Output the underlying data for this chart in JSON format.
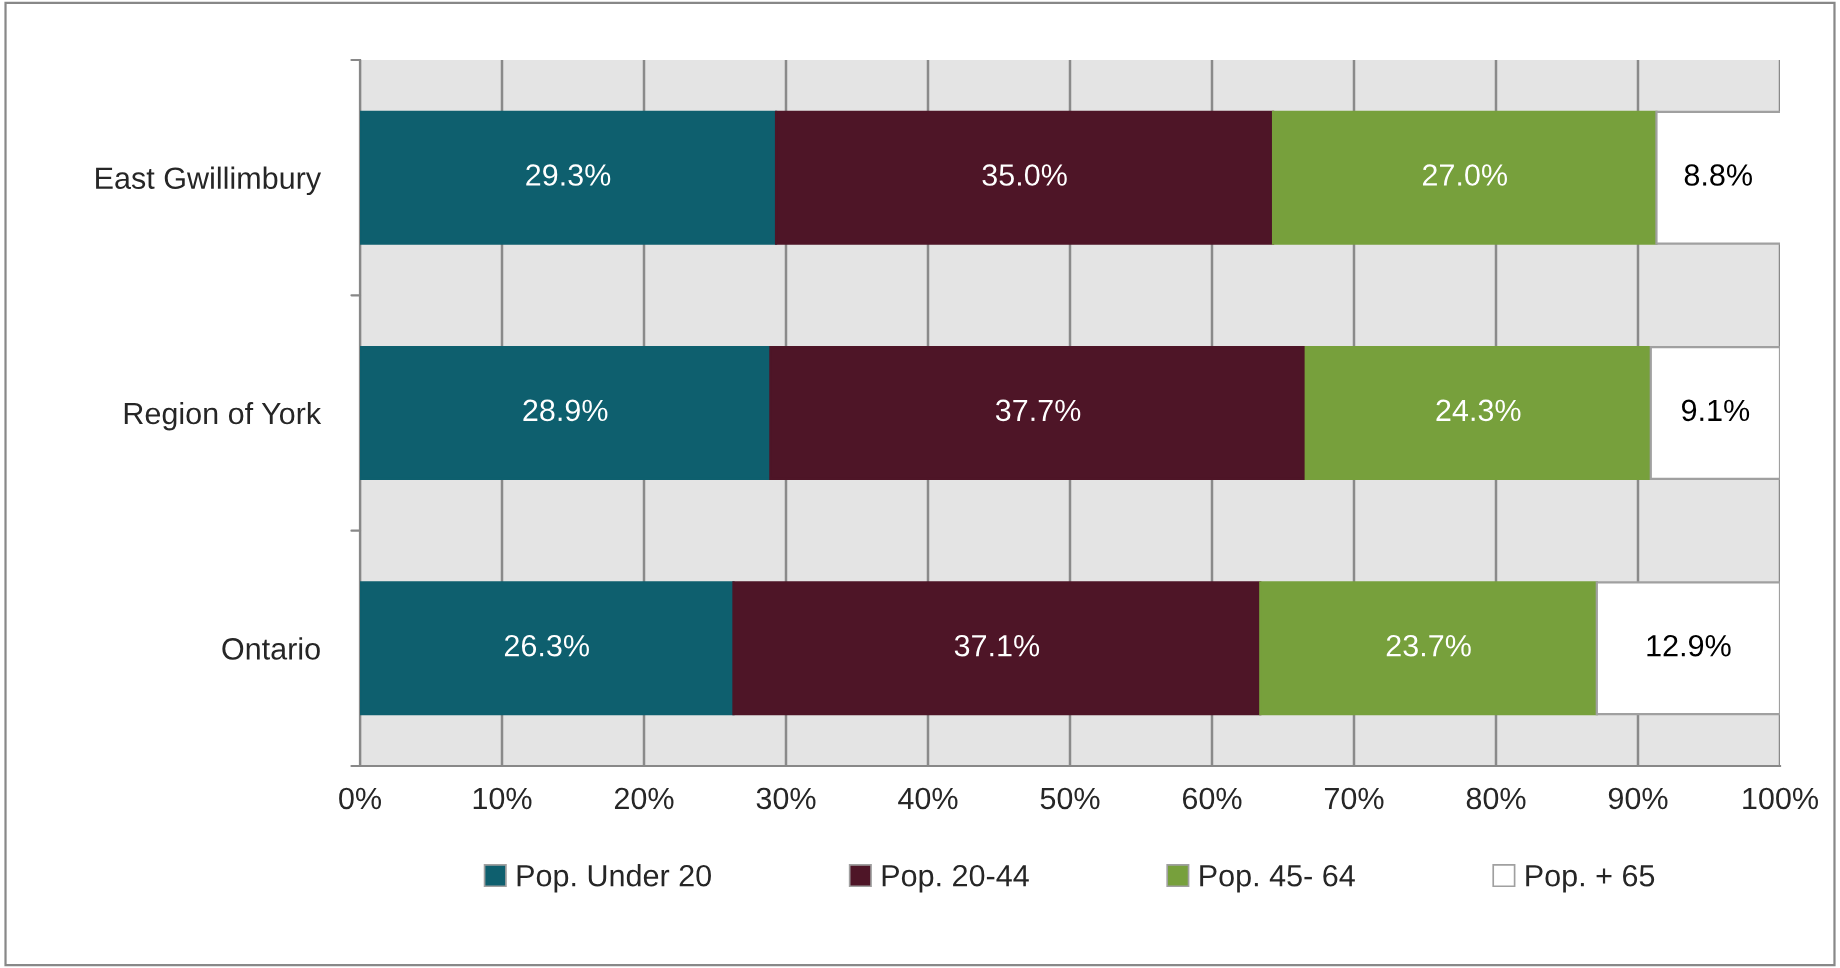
{
  "chart_data": {
    "type": "bar",
    "orientation": "horizontal",
    "stacked": true,
    "categories": [
      "East Gwillimbury",
      "Region of York",
      "Ontario"
    ],
    "series": [
      {
        "name": "Pop. Under 20",
        "color": "#0e5f6e",
        "values": [
          29.3,
          28.9,
          26.3
        ],
        "value_labels": [
          "29.3%",
          "28.9%",
          "26.3%"
        ]
      },
      {
        "name": "Pop. 20-44",
        "color": "#4e1527",
        "values": [
          35.0,
          37.7,
          37.1
        ],
        "value_labels": [
          "35.0%",
          "37.7%",
          "37.1%"
        ]
      },
      {
        "name": "Pop. 45- 64",
        "color": "#77a03c",
        "values": [
          27.0,
          24.3,
          23.7
        ],
        "value_labels": [
          "27.0%",
          "24.3%",
          "23.7%"
        ]
      },
      {
        "name": "Pop. + 65",
        "color": "#ffffff",
        "values": [
          8.8,
          9.1,
          12.9
        ],
        "value_labels": [
          "8.8%",
          "9.1%",
          "12.9%"
        ]
      }
    ],
    "xlim": [
      0,
      100
    ],
    "xticks": [
      {
        "value": 0,
        "label": "0%"
      },
      {
        "value": 10,
        "label": "10%"
      },
      {
        "value": 20,
        "label": "20%"
      },
      {
        "value": 30,
        "label": "30%"
      },
      {
        "value": 40,
        "label": "40%"
      },
      {
        "value": 50,
        "label": "50%"
      },
      {
        "value": 60,
        "label": "60%"
      },
      {
        "value": 70,
        "label": "70%"
      },
      {
        "value": 80,
        "label": "80%"
      },
      {
        "value": 90,
        "label": "90%"
      },
      {
        "value": 100,
        "label": "100%"
      }
    ],
    "grid": "x",
    "legend": "bottom"
  }
}
